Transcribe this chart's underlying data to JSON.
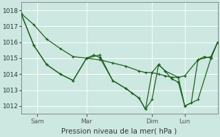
{
  "background_color": "#cce8e0",
  "grid_color": "#ffffff",
  "line_color": "#1a5c1a",
  "marker_color": "#1a5c1a",
  "title": "Pression niveau de la mer( hPa )",
  "ylim": [
    1011.5,
    1018.5
  ],
  "yticks": [
    1012,
    1013,
    1014,
    1015,
    1016,
    1017,
    1018
  ],
  "xtick_labels": [
    "Sam",
    "Mar",
    "Dim",
    "Lun"
  ],
  "xtick_positions": [
    0.083,
    0.333,
    0.666,
    0.833
  ],
  "xlim": [
    0,
    1
  ],
  "vline_positions": [
    0.083,
    0.333,
    0.666,
    0.833
  ],
  "line1_x": [
    0.0,
    0.065,
    0.13,
    0.2,
    0.265,
    0.333,
    0.4,
    0.466,
    0.533,
    0.6,
    0.633,
    0.666,
    0.7,
    0.733,
    0.766,
    0.8,
    0.833,
    0.9,
    0.966,
    1.0
  ],
  "line1_y": [
    1017.8,
    1017.1,
    1016.2,
    1015.6,
    1015.1,
    1015.0,
    1014.9,
    1014.7,
    1014.5,
    1014.2,
    1014.1,
    1014.1,
    1014.0,
    1013.9,
    1013.8,
    1013.8,
    1013.9,
    1014.9,
    1015.1,
    1016.0
  ],
  "line2_x": [
    0.0,
    0.065,
    0.13,
    0.2,
    0.265,
    0.333,
    0.37,
    0.4,
    0.466,
    0.533,
    0.566,
    0.6,
    0.633,
    0.666,
    0.7,
    0.733,
    0.766,
    0.8,
    0.833,
    0.866,
    0.9,
    0.933,
    0.966,
    1.0
  ],
  "line2_y": [
    1017.8,
    1015.8,
    1014.6,
    1014.0,
    1013.6,
    1015.0,
    1015.2,
    1015.05,
    1013.6,
    1013.1,
    1012.8,
    1012.5,
    1011.8,
    1012.4,
    1014.6,
    1014.2,
    1013.7,
    1013.5,
    1012.0,
    1012.2,
    1014.9,
    1015.1,
    1015.0,
    1016.0
  ],
  "line3_x": [
    0.0,
    0.065,
    0.13,
    0.2,
    0.265,
    0.333,
    0.4,
    0.466,
    0.533,
    0.6,
    0.633,
    0.666,
    0.7,
    0.733,
    0.8,
    0.833,
    0.9,
    0.966,
    1.0
  ],
  "line3_y": [
    1017.8,
    1015.8,
    1014.6,
    1014.0,
    1013.6,
    1015.0,
    1015.2,
    1013.6,
    1013.1,
    1012.5,
    1011.8,
    1014.1,
    1014.6,
    1014.2,
    1013.8,
    1012.0,
    1012.4,
    1015.0,
    1016.0
  ]
}
